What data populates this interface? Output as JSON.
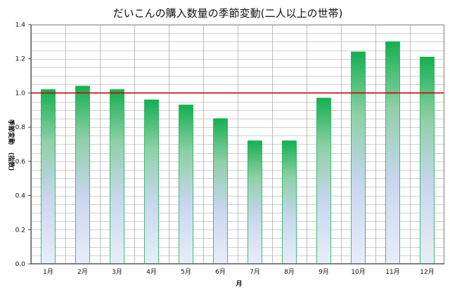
{
  "chart_data": {
    "type": "bar",
    "title": "だいこんの購入数量の季節変動(二人以上の世帯)",
    "xlabel": "月",
    "ylabel_main": "季節変動",
    "ylabel_sub": "(指数)",
    "categories": [
      "1月",
      "2月",
      "3月",
      "4月",
      "5月",
      "6月",
      "7月",
      "8月",
      "9月",
      "10月",
      "11月",
      "12月"
    ],
    "values": [
      1.02,
      1.04,
      1.02,
      0.96,
      0.93,
      0.85,
      0.72,
      0.72,
      0.97,
      1.24,
      1.3,
      1.21
    ],
    "ylim": [
      0,
      1.4
    ],
    "yticks": [
      "0.0",
      "0.2",
      "0.4",
      "0.6",
      "0.8",
      "1.0",
      "1.2",
      "1.4"
    ],
    "reference_line": 1.0,
    "grid": true,
    "legend": "none",
    "colors": {
      "bar_top": "#14b050",
      "bar_mid": "#8fd0a8",
      "bar_bottom": "#c8d6ef",
      "bar_light": "#e8eef8",
      "reference": "#cc0000",
      "grid": "#a0a0a0"
    }
  }
}
